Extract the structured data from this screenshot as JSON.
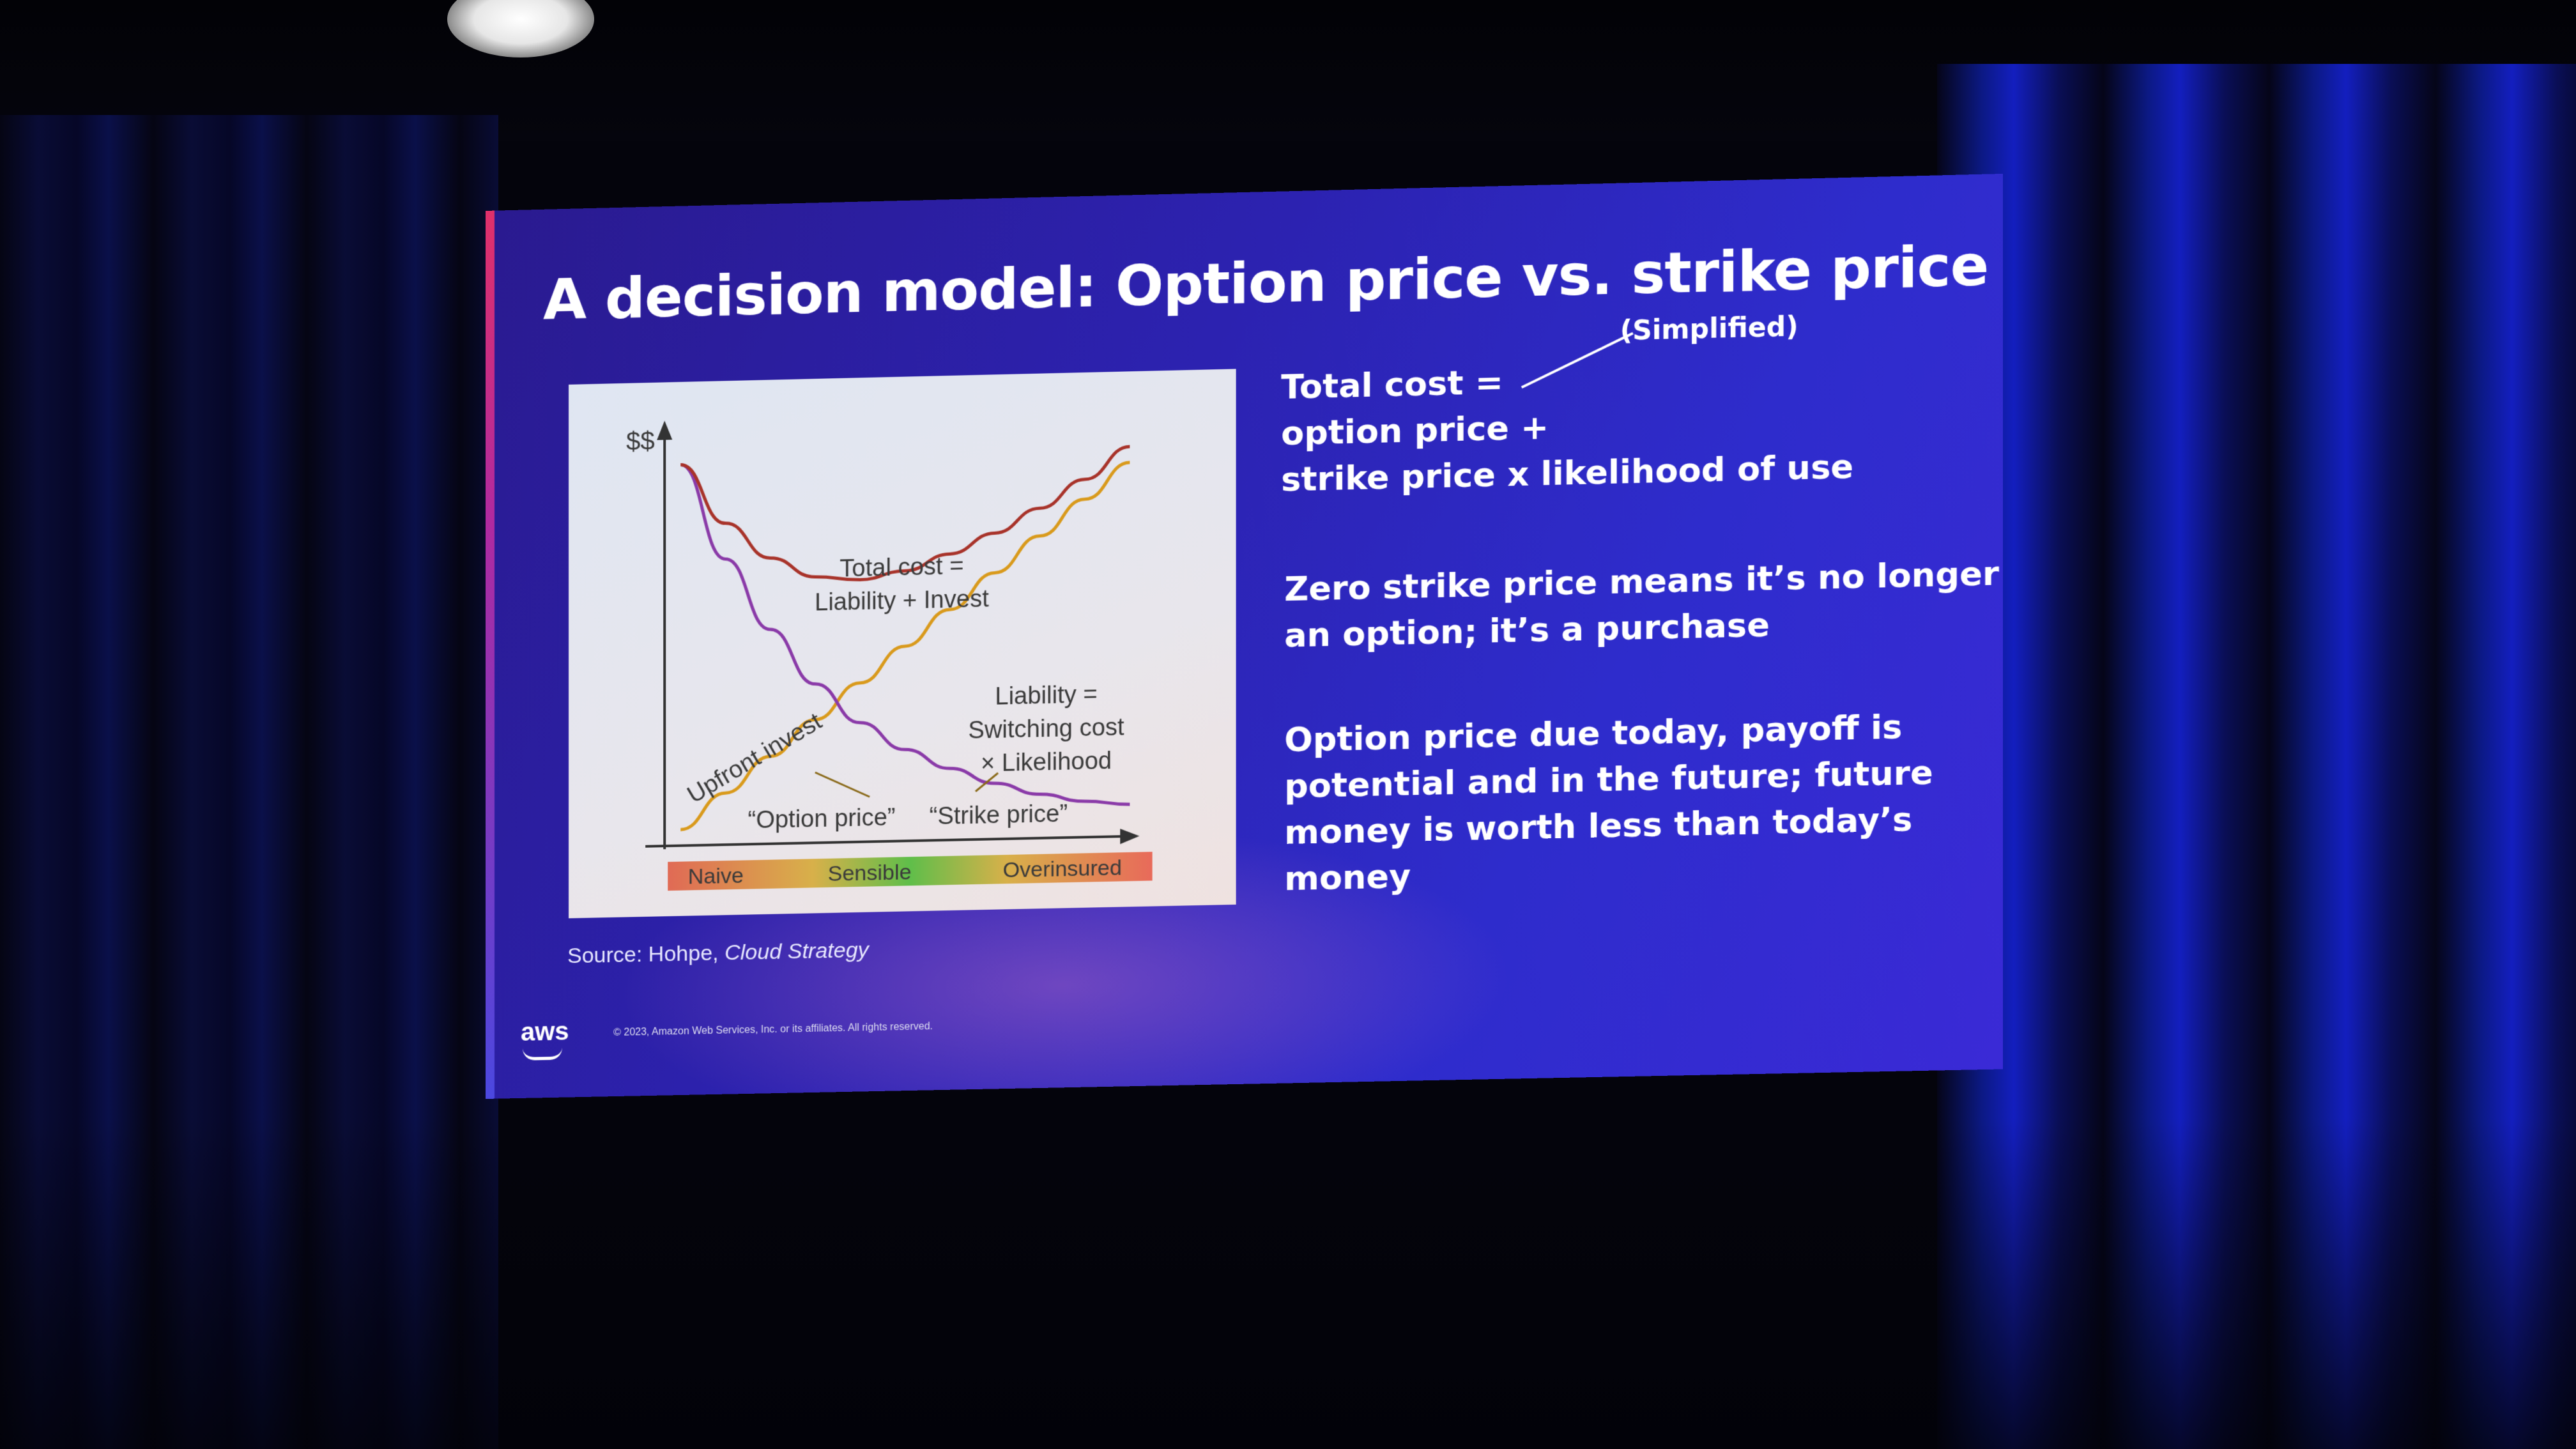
{
  "slide": {
    "title": "A decision model: Option price vs. strike price",
    "annotation": "(Simplified)",
    "bullets": [
      {
        "lines": [
          "Total cost =",
          "option price +",
          "strike price x likelihood of use"
        ]
      },
      {
        "lines": [
          "Zero strike price means it’s no longer",
          "an option; it’s a purchase"
        ]
      },
      {
        "lines": [
          "Option price due today, payoff is",
          "potential and in the future; future",
          "money is worth less than today’s",
          "money"
        ]
      }
    ],
    "source_prefix": "Source: Hohpe, ",
    "source_title": "Cloud Strategy",
    "logo": "aws",
    "copyright": "© 2023, Amazon Web Services, Inc. or its affiliates. All rights reserved."
  },
  "chart_data": {
    "type": "line",
    "ylabel": "$$",
    "xlabel": "",
    "x": [
      0,
      1,
      2,
      3,
      4,
      5,
      6,
      7,
      8,
      9,
      10
    ],
    "series": [
      {
        "key": "upfront",
        "values": [
          0.0,
          0.9,
          1.8,
          2.7,
          3.6,
          4.5,
          5.4,
          6.3,
          7.2,
          8.1,
          9.0
        ],
        "color": "#d99a1c"
      },
      {
        "key": "liability",
        "values": [
          9.2,
          6.8,
          5.0,
          3.6,
          2.6,
          1.9,
          1.4,
          1.0,
          0.7,
          0.5,
          0.4
        ],
        "color": "#8a3aa8"
      },
      {
        "key": "total",
        "values": [
          9.2,
          7.7,
          6.8,
          6.3,
          6.2,
          6.4,
          6.8,
          7.3,
          7.9,
          8.6,
          9.4
        ],
        "color": "#a8332a"
      }
    ],
    "labels": {
      "total": [
        "Total cost =",
        "Liability + Invest"
      ],
      "liability": [
        "Liability =",
        "Switching cost",
        "× Likelihood"
      ],
      "upfront": "Upfront invest",
      "option_price": "“Option price”",
      "strike_price": "“Strike price”"
    },
    "zones": [
      {
        "label": "Naive",
        "color": "#e06a55"
      },
      {
        "label": "Sensible",
        "color": "#5fbe4a"
      },
      {
        "label": "Overinsured",
        "color": "#e86a5a"
      }
    ],
    "colors": {
      "axis": "#333333",
      "zone_text": "#2a2a2a"
    }
  }
}
